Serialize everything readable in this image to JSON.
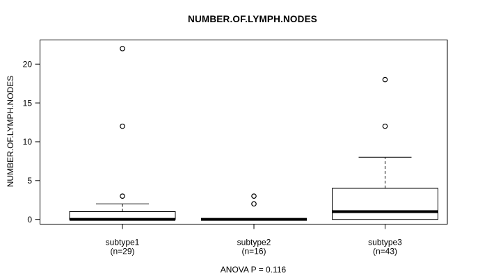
{
  "chart_data": {
    "type": "boxplot",
    "title": "NUMBER.OF.LYMPH.NODES",
    "ylabel": "NUMBER.OF.LYMPH.NODES",
    "caption": "ANOVA P = 0.116",
    "anova_p": 0.116,
    "y_ticks": [
      0,
      5,
      10,
      15,
      20
    ],
    "ylim": [
      -0.61,
      23.11
    ],
    "grid": false,
    "categories": [
      "subtype1",
      "subtype2",
      "subtype3"
    ],
    "groups": [
      {
        "label": "subtype1",
        "sublabel": "(n=29)",
        "n": 29,
        "low_whisker": 0,
        "q1": 0,
        "median": 0,
        "q3": 1,
        "high_whisker": 2,
        "outliers": [
          3,
          12,
          22
        ]
      },
      {
        "label": "subtype2",
        "sublabel": "(n=16)",
        "n": 16,
        "low_whisker": 0,
        "q1": 0,
        "median": 0,
        "q3": 0,
        "high_whisker": 0,
        "outliers": [
          2,
          3
        ]
      },
      {
        "label": "subtype3",
        "sublabel": "(n=43)",
        "n": 43,
        "low_whisker": 0,
        "q1": 0,
        "median": 1,
        "q3": 4,
        "high_whisker": 8,
        "outliers": [
          12,
          18
        ]
      }
    ],
    "colors": {
      "line": "#000000",
      "box_fill": "#ffffff",
      "background": "#ffffff"
    }
  }
}
